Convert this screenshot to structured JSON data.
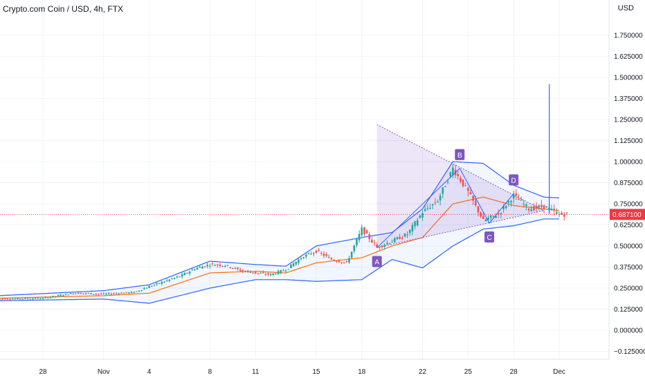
{
  "header": {
    "symbol_title": "Crypto.com Coin / USD, 4h, FTX",
    "currency": "USD"
  },
  "chart_data": {
    "type": "candlestick",
    "title": "Crypto.com Coin / USD, 4h, FTX",
    "currency": "USD",
    "y_ticks": [
      1.75,
      1.625,
      1.5,
      1.375,
      1.25,
      1.125,
      1.0,
      0.875,
      0.75,
      0.625,
      0.5,
      0.375,
      0.25,
      0.125,
      0.0,
      -0.125
    ],
    "y_tick_labels": [
      "1.750000",
      "1.625000",
      "1.500000",
      "1.375000",
      "1.250000",
      "1.125000",
      "1.000000",
      "0.875000",
      "0.750000",
      "0.625000",
      "0.500000",
      "0.375000",
      "0.250000",
      "0.125000",
      "0.000000",
      "−0.125000"
    ],
    "ylim": [
      -0.16,
      1.76
    ],
    "x_tick_labels": [
      "28",
      "Nov",
      "4",
      "8",
      "11",
      "15",
      "18",
      "22",
      "25",
      "28",
      "Dec"
    ],
    "x_ticks": [
      "2021-10-28",
      "2021-11-01",
      "2021-11-04",
      "2021-11-08",
      "2021-11-11",
      "2021-11-15",
      "2021-11-18",
      "2021-11-22",
      "2021-11-25",
      "2021-11-28",
      "2021-12-01"
    ],
    "x_range": [
      "2021-10-25",
      "2021-12-07"
    ],
    "last_price": 0.6871,
    "last_price_label": "0.687100",
    "price_line_color": "#f23645",
    "up_color": "#26a69a",
    "down_color": "#ef5350",
    "bollinger_color": "#2962ff",
    "ma_color": "#ff6d00",
    "pattern_color": "#7e57c2",
    "key_points": [
      {
        "date": "2021-10-25",
        "close": 0.185
      },
      {
        "date": "2021-10-28",
        "close": 0.19
      },
      {
        "date": "2021-10-30",
        "close": 0.22
      },
      {
        "date": "2021-11-01",
        "close": 0.215
      },
      {
        "date": "2021-11-03",
        "close": 0.225
      },
      {
        "date": "2021-11-04",
        "close": 0.26
      },
      {
        "date": "2021-11-05",
        "close": 0.29
      },
      {
        "date": "2021-11-06",
        "close": 0.32
      },
      {
        "date": "2021-11-07",
        "close": 0.365
      },
      {
        "date": "2021-11-08",
        "close": 0.39
      },
      {
        "date": "2021-11-09",
        "close": 0.385
      },
      {
        "date": "2021-11-10",
        "close": 0.355
      },
      {
        "date": "2021-11-11",
        "close": 0.34
      },
      {
        "date": "2021-11-12",
        "close": 0.33
      },
      {
        "date": "2021-11-13",
        "close": 0.36
      },
      {
        "date": "2021-11-14",
        "close": 0.43
      },
      {
        "date": "2021-11-15",
        "close": 0.47
      },
      {
        "date": "2021-11-16",
        "close": 0.42
      },
      {
        "date": "2021-11-17",
        "close": 0.4
      },
      {
        "date": "2021-11-18",
        "close": 0.6
      },
      {
        "date": "2021-11-19",
        "close": 0.49
      },
      {
        "date": "2021-11-20",
        "close": 0.53
      },
      {
        "date": "2021-11-21",
        "close": 0.57
      },
      {
        "date": "2021-11-22",
        "close": 0.7
      },
      {
        "date": "2021-11-23",
        "close": 0.77
      },
      {
        "date": "2021-11-24",
        "close": 0.96
      },
      {
        "date": "2021-11-25",
        "close": 0.82
      },
      {
        "date": "2021-11-26",
        "close": 0.65
      },
      {
        "date": "2021-11-27",
        "close": 0.69
      },
      {
        "date": "2021-11-28",
        "close": 0.8
      },
      {
        "date": "2021-11-29",
        "close": 0.72
      },
      {
        "date": "2021-11-30",
        "close": 0.735
      },
      {
        "date": "2021-12-01",
        "close": 0.6871
      }
    ],
    "spike": {
      "date": "2021-11-30",
      "high": 1.46,
      "low": 0.69
    },
    "pattern_points": [
      {
        "label": "A",
        "date": "2021-11-19",
        "price": 0.49
      },
      {
        "label": "B",
        "date": "2021-11-24",
        "price": 0.96
      },
      {
        "label": "C",
        "date": "2021-11-26",
        "price": 0.635
      },
      {
        "label": "D",
        "date": "2021-11-28",
        "price": 0.81
      }
    ],
    "triangle": [
      {
        "date": "2021-11-19",
        "price": 1.22
      },
      {
        "date": "2021-11-19",
        "price": 0.49
      },
      {
        "date": "2021-11-30",
        "price": 0.71
      }
    ],
    "bb_upper": [
      {
        "date": "2021-10-25",
        "close": 0.205
      },
      {
        "date": "2021-11-01",
        "close": 0.235
      },
      {
        "date": "2021-11-04",
        "close": 0.27
      },
      {
        "date": "2021-11-08",
        "close": 0.41
      },
      {
        "date": "2021-11-11",
        "close": 0.39
      },
      {
        "date": "2021-11-13",
        "close": 0.38
      },
      {
        "date": "2021-11-15",
        "close": 0.5
      },
      {
        "date": "2021-11-18",
        "close": 0.55
      },
      {
        "date": "2021-11-20",
        "close": 0.58
      },
      {
        "date": "2021-11-22",
        "close": 0.72
      },
      {
        "date": "2021-11-24",
        "close": 1.0
      },
      {
        "date": "2021-11-26",
        "close": 0.99
      },
      {
        "date": "2021-11-28",
        "close": 0.86
      },
      {
        "date": "2021-11-30",
        "close": 0.79
      },
      {
        "date": "2021-12-01",
        "close": 0.785
      }
    ],
    "bb_lower": [
      {
        "date": "2021-10-25",
        "close": 0.175
      },
      {
        "date": "2021-11-01",
        "close": 0.185
      },
      {
        "date": "2021-11-04",
        "close": 0.16
      },
      {
        "date": "2021-11-08",
        "close": 0.25
      },
      {
        "date": "2021-11-11",
        "close": 0.3
      },
      {
        "date": "2021-11-13",
        "close": 0.3
      },
      {
        "date": "2021-11-15",
        "close": 0.29
      },
      {
        "date": "2021-11-18",
        "close": 0.3
      },
      {
        "date": "2021-11-20",
        "close": 0.42
      },
      {
        "date": "2021-11-22",
        "close": 0.37
      },
      {
        "date": "2021-11-24",
        "close": 0.5
      },
      {
        "date": "2021-11-26",
        "close": 0.6
      },
      {
        "date": "2021-11-28",
        "close": 0.62
      },
      {
        "date": "2021-11-30",
        "close": 0.66
      },
      {
        "date": "2021-12-01",
        "close": 0.66
      }
    ],
    "ma": [
      {
        "date": "2021-10-25",
        "close": 0.19
      },
      {
        "date": "2021-11-01",
        "close": 0.205
      },
      {
        "date": "2021-11-04",
        "close": 0.22
      },
      {
        "date": "2021-11-08",
        "close": 0.34
      },
      {
        "date": "2021-11-11",
        "close": 0.35
      },
      {
        "date": "2021-11-13",
        "close": 0.34
      },
      {
        "date": "2021-11-15",
        "close": 0.4
      },
      {
        "date": "2021-11-18",
        "close": 0.43
      },
      {
        "date": "2021-11-20",
        "close": 0.5
      },
      {
        "date": "2021-11-22",
        "close": 0.55
      },
      {
        "date": "2021-11-24",
        "close": 0.75
      },
      {
        "date": "2021-11-26",
        "close": 0.79
      },
      {
        "date": "2021-11-28",
        "close": 0.74
      },
      {
        "date": "2021-11-30",
        "close": 0.72
      },
      {
        "date": "2021-12-01",
        "close": 0.71
      }
    ]
  }
}
